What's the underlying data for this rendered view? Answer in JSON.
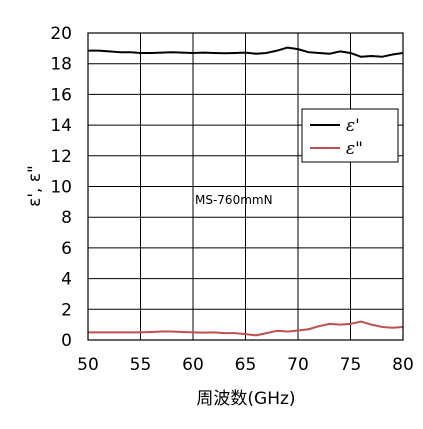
{
  "chart_data": {
    "type": "line",
    "xlabel": "周波数(GHz)",
    "ylabel": "ε', ε\"",
    "xlim": [
      50,
      80
    ],
    "ylim": [
      0,
      20
    ],
    "xticks": [
      50,
      55,
      60,
      65,
      70,
      75,
      80
    ],
    "yticks": [
      0,
      2,
      4,
      6,
      8,
      10,
      12,
      14,
      16,
      18,
      20
    ],
    "grid": true,
    "legend_position": "right",
    "annotation": "MS-760mmN",
    "series": [
      {
        "name": "ε'",
        "color": "#000000",
        "x": [
          50,
          51,
          52,
          53,
          54,
          55,
          56,
          57,
          58,
          59,
          60,
          61,
          62,
          63,
          64,
          65,
          66,
          67,
          68,
          69,
          70,
          71,
          72,
          73,
          74,
          75,
          76,
          77,
          78,
          79,
          80
        ],
        "y": [
          18.85,
          18.85,
          18.8,
          18.75,
          18.75,
          18.7,
          18.7,
          18.72,
          18.75,
          18.72,
          18.7,
          18.72,
          18.7,
          18.68,
          18.7,
          18.72,
          18.65,
          18.7,
          18.85,
          19.05,
          18.95,
          18.75,
          18.7,
          18.65,
          18.8,
          18.7,
          18.45,
          18.5,
          18.45,
          18.6,
          18.7
        ]
      },
      {
        "name": "ε\"",
        "color": "#c0504d",
        "x": [
          50,
          51,
          52,
          53,
          54,
          55,
          56,
          57,
          58,
          59,
          60,
          61,
          62,
          63,
          64,
          65,
          66,
          67,
          68,
          69,
          70,
          71,
          72,
          73,
          74,
          75,
          76,
          77,
          78,
          79,
          80
        ],
        "y": [
          0.5,
          0.5,
          0.5,
          0.5,
          0.5,
          0.5,
          0.52,
          0.55,
          0.55,
          0.52,
          0.5,
          0.48,
          0.5,
          0.45,
          0.45,
          0.38,
          0.3,
          0.45,
          0.6,
          0.55,
          0.62,
          0.7,
          0.9,
          1.05,
          1.0,
          1.05,
          1.2,
          1.0,
          0.85,
          0.8,
          0.85
        ]
      }
    ]
  }
}
